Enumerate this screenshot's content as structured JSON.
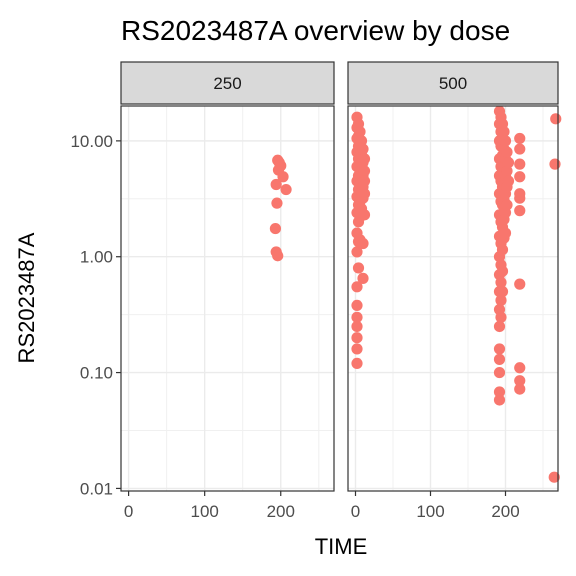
{
  "chart_data": {
    "type": "scatter",
    "title": "RS2023487A overview by dose",
    "xlabel": "TIME",
    "ylabel": "RS2023487A",
    "y_scale": "log10",
    "ylim": [
      0.0095,
      20
    ],
    "xlim": [
      -10,
      270
    ],
    "x_ticks": [
      0,
      100,
      200
    ],
    "x_tick_labels": [
      "0",
      "100",
      "200"
    ],
    "y_ticks": [
      0.01,
      0.1,
      1,
      10
    ],
    "y_tick_labels": [
      "0.01",
      "0.10",
      "1.00",
      "10.00"
    ],
    "point_color": "#F8766D",
    "grid": true,
    "facets": [
      {
        "label": "250",
        "points": [
          [
            196,
            6.8
          ],
          [
            198,
            6.5
          ],
          [
            200,
            6.1
          ],
          [
            197,
            5.6
          ],
          [
            203,
            4.9
          ],
          [
            194,
            4.2
          ],
          [
            207,
            3.8
          ],
          [
            195,
            2.9
          ],
          [
            193,
            1.75
          ],
          [
            194,
            1.1
          ],
          [
            196,
            1.02
          ]
        ]
      },
      {
        "label": "500",
        "points": [
          [
            2,
            16
          ],
          [
            2,
            13
          ],
          [
            2,
            10.5
          ],
          [
            2,
            8
          ],
          [
            2,
            6
          ],
          [
            2,
            4.5
          ],
          [
            2,
            3.3
          ],
          [
            2,
            2.4
          ],
          [
            2,
            1.6
          ],
          [
            2,
            1.1
          ],
          [
            2,
            0.55
          ],
          [
            2,
            0.38
          ],
          [
            2,
            0.3
          ],
          [
            2,
            0.25
          ],
          [
            2,
            0.2
          ],
          [
            2,
            0.16
          ],
          [
            2,
            0.12
          ],
          [
            4,
            14
          ],
          [
            4,
            11
          ],
          [
            4,
            9
          ],
          [
            4,
            7
          ],
          [
            4,
            5
          ],
          [
            4,
            3.8
          ],
          [
            4,
            2.8
          ],
          [
            4,
            2
          ],
          [
            4,
            1.35
          ],
          [
            4,
            0.8
          ],
          [
            6,
            12
          ],
          [
            6,
            9.5
          ],
          [
            6,
            7.5
          ],
          [
            6,
            5.5
          ],
          [
            6,
            4.2
          ],
          [
            6,
            3
          ],
          [
            6,
            2.2
          ],
          [
            6,
            1.4
          ],
          [
            8,
            10
          ],
          [
            8,
            8
          ],
          [
            8,
            6.5
          ],
          [
            8,
            5
          ],
          [
            8,
            3.7
          ],
          [
            8,
            2.6
          ],
          [
            10,
            8.5
          ],
          [
            10,
            6.5
          ],
          [
            10,
            5
          ],
          [
            10,
            4
          ],
          [
            10,
            3.2
          ],
          [
            10,
            1.3
          ],
          [
            10,
            0.65
          ],
          [
            12,
            7
          ],
          [
            12,
            5.5
          ],
          [
            12,
            4.5
          ],
          [
            12,
            3.5
          ],
          [
            12,
            2.3
          ],
          [
            192,
            18
          ],
          [
            192,
            14
          ],
          [
            192,
            10
          ],
          [
            192,
            7
          ],
          [
            192,
            5
          ],
          [
            192,
            3.5
          ],
          [
            192,
            2.3
          ],
          [
            192,
            1.5
          ],
          [
            192,
            1.0
          ],
          [
            192,
            0.7
          ],
          [
            192,
            0.5
          ],
          [
            192,
            0.35
          ],
          [
            192,
            0.25
          ],
          [
            192,
            0.16
          ],
          [
            192,
            0.13
          ],
          [
            192,
            0.1
          ],
          [
            192,
            0.068
          ],
          [
            192,
            0.058
          ],
          [
            194,
            16
          ],
          [
            194,
            12
          ],
          [
            194,
            9
          ],
          [
            194,
            6
          ],
          [
            194,
            4.5
          ],
          [
            194,
            3
          ],
          [
            194,
            2
          ],
          [
            194,
            1.3
          ],
          [
            194,
            0.85
          ],
          [
            194,
            0.6
          ],
          [
            194,
            0.42
          ],
          [
            194,
            0.3
          ],
          [
            196,
            14
          ],
          [
            196,
            10.5
          ],
          [
            196,
            7.5
          ],
          [
            196,
            5.5
          ],
          [
            196,
            4
          ],
          [
            196,
            2.8
          ],
          [
            196,
            1.8
          ],
          [
            196,
            1.15
          ],
          [
            196,
            0.75
          ],
          [
            196,
            0.5
          ],
          [
            198,
            12
          ],
          [
            198,
            8.5
          ],
          [
            198,
            6
          ],
          [
            198,
            4.2
          ],
          [
            198,
            3.1
          ],
          [
            198,
            2.1
          ],
          [
            198,
            1.45
          ],
          [
            200,
            10
          ],
          [
            200,
            7
          ],
          [
            200,
            5
          ],
          [
            200,
            3.5
          ],
          [
            200,
            2.4
          ],
          [
            200,
            1.6
          ],
          [
            202,
            8
          ],
          [
            202,
            5.5
          ],
          [
            202,
            4
          ],
          [
            202,
            2.8
          ],
          [
            204,
            6.5
          ],
          [
            204,
            4.5
          ],
          [
            219,
            10.5
          ],
          [
            219,
            8.5
          ],
          [
            219,
            6.3
          ],
          [
            219,
            4.9
          ],
          [
            219,
            3.5
          ],
          [
            219,
            3.2
          ],
          [
            219,
            2.5
          ],
          [
            219,
            0.58
          ],
          [
            219,
            0.11
          ],
          [
            219,
            0.085
          ],
          [
            219,
            0.072
          ],
          [
            267,
            15.5
          ],
          [
            266,
            6.3
          ],
          [
            265,
            0.0125
          ]
        ]
      }
    ]
  }
}
